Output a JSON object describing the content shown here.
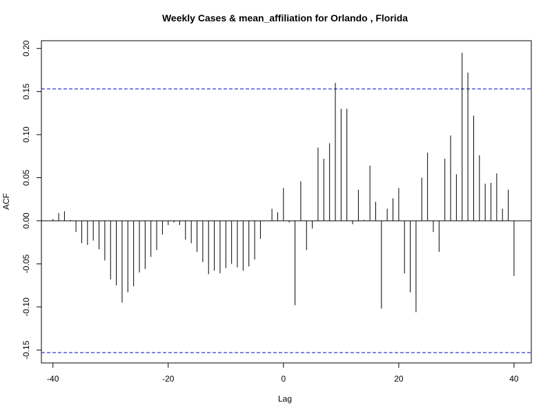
{
  "chart_data": {
    "type": "bar",
    "title": "Weekly Cases & mean_affiliation for Orlando , Florida",
    "xlabel": "Lag",
    "ylabel": "ACF",
    "xlim": [
      -42,
      43
    ],
    "ylim": [
      -0.165,
      0.209
    ],
    "x_ticks": [
      -40,
      -20,
      0,
      20,
      40
    ],
    "x_tick_labels": [
      "-40",
      "-20",
      "0",
      "20",
      "40"
    ],
    "y_ticks": [
      -0.15,
      -0.1,
      -0.05,
      0.0,
      0.05,
      0.1,
      0.15,
      0.2
    ],
    "y_tick_labels": [
      "-0.15",
      "-0.10",
      "-0.05",
      "0.00",
      "0.05",
      "0.10",
      "0.15",
      "0.20"
    ],
    "confidence_bounds": [
      0.153,
      -0.153
    ],
    "grid": false,
    "colors": {
      "bars": "#000000",
      "bounds": "#0000cc",
      "zero_line": "#000000",
      "frame": "#000000"
    },
    "lags": [
      -40,
      -39,
      -38,
      -37,
      -36,
      -35,
      -34,
      -33,
      -32,
      -31,
      -30,
      -29,
      -28,
      -27,
      -26,
      -25,
      -24,
      -23,
      -22,
      -21,
      -20,
      -19,
      -18,
      -17,
      -16,
      -15,
      -14,
      -13,
      -12,
      -11,
      -10,
      -9,
      -8,
      -7,
      -6,
      -5,
      -4,
      -3,
      -2,
      -1,
      0,
      1,
      2,
      3,
      4,
      5,
      6,
      7,
      8,
      9,
      10,
      11,
      12,
      13,
      14,
      15,
      16,
      17,
      18,
      19,
      20,
      21,
      22,
      23,
      24,
      25,
      26,
      27,
      28,
      29,
      30,
      31,
      32,
      33,
      34,
      35,
      36,
      37,
      38,
      39,
      40
    ],
    "values": [
      0.002,
      0.009,
      0.011,
      0.001,
      -0.013,
      -0.026,
      -0.028,
      -0.023,
      -0.033,
      -0.046,
      -0.068,
      -0.075,
      -0.095,
      -0.083,
      -0.076,
      -0.06,
      -0.056,
      -0.042,
      -0.034,
      -0.016,
      -0.005,
      -0.002,
      -0.005,
      -0.022,
      -0.026,
      -0.036,
      -0.048,
      -0.062,
      -0.058,
      -0.061,
      -0.055,
      -0.05,
      -0.054,
      -0.058,
      -0.053,
      -0.045,
      -0.021,
      0.0,
      0.014,
      0.01,
      0.038,
      -0.002,
      -0.098,
      0.046,
      -0.034,
      -0.009,
      0.085,
      0.072,
      0.09,
      0.16,
      0.13,
      0.13,
      -0.004,
      0.036,
      0.001,
      0.064,
      0.022,
      -0.102,
      0.014,
      0.026,
      0.038,
      -0.061,
      -0.083,
      -0.106,
      0.05,
      0.079,
      -0.013,
      -0.036,
      0.072,
      0.099,
      0.054,
      0.195,
      0.172,
      0.122,
      0.076,
      0.043,
      0.044,
      0.055,
      0.014,
      0.036,
      -0.064
    ]
  }
}
